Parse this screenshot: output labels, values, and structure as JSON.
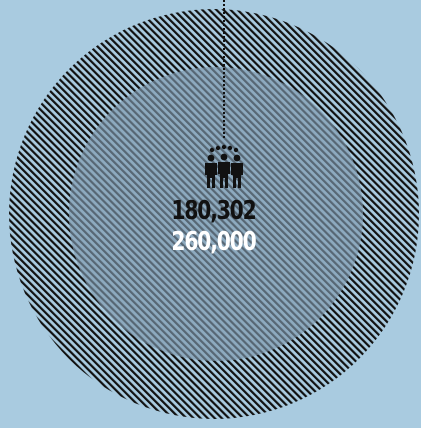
{
  "infographic": {
    "count_primary": "180,302",
    "count_secondary": "260,000",
    "icon": "people-group-icon"
  },
  "colors": {
    "background": "#a9cbe0",
    "hatch": "#111111",
    "inner_circle": "#7f97ad",
    "primary_text": "#111111",
    "secondary_text": "#ffffff"
  }
}
